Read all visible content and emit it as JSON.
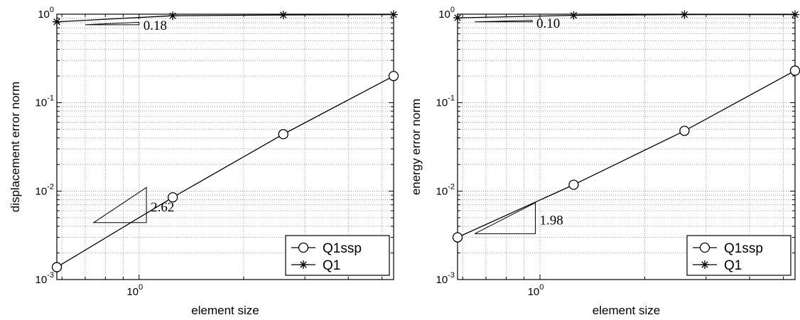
{
  "chart_data": [
    {
      "type": "line",
      "xscale": "log",
      "yscale": "log",
      "xlim": [
        0.58,
        5.4
      ],
      "ylim": [
        0.001,
        1
      ],
      "grid": true,
      "legend_position": "bottom-right",
      "xlabel": "element size",
      "ylabel": "displacement error norm",
      "x_ticks": [
        {
          "base": "10",
          "exp": "0",
          "value": 1
        }
      ],
      "y_ticks": [
        {
          "base": "10",
          "exp": "-3",
          "value": 0.001
        },
        {
          "base": "10",
          "exp": "-2",
          "value": 0.01
        },
        {
          "base": "10",
          "exp": "-1",
          "value": 0.1
        },
        {
          "base": "10",
          "exp": "0",
          "value": 1
        }
      ],
      "series": [
        {
          "name": "Q1ssp",
          "marker": "circle",
          "x": [
            0.58,
            1.25,
            2.6,
            5.4
          ],
          "y": [
            0.00138,
            0.0085,
            0.044,
            0.2
          ]
        },
        {
          "name": "Q1",
          "marker": "star",
          "x": [
            0.58,
            1.25,
            2.6,
            5.4
          ],
          "y": [
            0.82,
            0.96,
            0.98,
            0.99
          ]
        }
      ],
      "annotations": [
        {
          "text": "0.18",
          "triangle": [
            [
              0.7,
              0.76
            ],
            [
              1.0,
              0.76
            ],
            [
              1.0,
              0.81
            ]
          ]
        },
        {
          "text": "2.62",
          "triangle": [
            [
              0.74,
              0.0044
            ],
            [
              1.05,
              0.0044
            ],
            [
              1.05,
              0.011
            ]
          ]
        }
      ]
    },
    {
      "type": "line",
      "xscale": "log",
      "yscale": "log",
      "xlim": [
        0.58,
        5.4
      ],
      "ylim": [
        0.001,
        1
      ],
      "grid": true,
      "legend_position": "bottom-right",
      "xlabel": "element size",
      "ylabel": "energy error norm",
      "x_ticks": [
        {
          "base": "10",
          "exp": "0",
          "value": 1
        }
      ],
      "y_ticks": [
        {
          "base": "10",
          "exp": "-3",
          "value": 0.001
        },
        {
          "base": "10",
          "exp": "-2",
          "value": 0.01
        },
        {
          "base": "10",
          "exp": "-1",
          "value": 0.1
        },
        {
          "base": "10",
          "exp": "0",
          "value": 1
        }
      ],
      "series": [
        {
          "name": "Q1ssp",
          "marker": "circle",
          "x": [
            0.58,
            1.25,
            2.6,
            5.4
          ],
          "y": [
            0.003,
            0.0118,
            0.048,
            0.23
          ]
        },
        {
          "name": "Q1",
          "marker": "star",
          "x": [
            0.58,
            1.25,
            2.6,
            5.4
          ],
          "y": [
            0.91,
            0.97,
            0.99,
            0.99
          ]
        }
      ],
      "annotations": [
        {
          "text": "0.10",
          "triangle": [
            [
              0.65,
              0.82
            ],
            [
              0.95,
              0.82
            ],
            [
              0.95,
              0.85
            ]
          ]
        },
        {
          "text": "1.98",
          "triangle": [
            [
              0.65,
              0.0033
            ],
            [
              0.97,
              0.0033
            ],
            [
              0.97,
              0.0074
            ]
          ]
        }
      ]
    }
  ]
}
